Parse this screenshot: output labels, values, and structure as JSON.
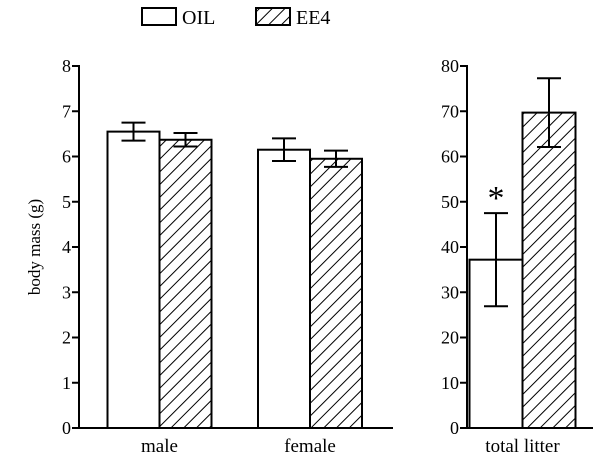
{
  "legend": {
    "oil_label": "OIL",
    "ee4_label": "EE4"
  },
  "chart_data": [
    {
      "type": "bar",
      "ylabel": "body mass (g)",
      "categories": [
        "male",
        "female"
      ],
      "ylim": [
        0,
        8
      ],
      "yticks": [
        "0",
        "1",
        "2",
        "3",
        "4",
        "5",
        "6",
        "7",
        "8"
      ],
      "series": [
        {
          "name": "OIL",
          "fill": "none",
          "values": [
            6.55,
            6.15
          ],
          "errors": [
            0.2,
            0.25
          ]
        },
        {
          "name": "EE4",
          "fill": "hatched",
          "values": [
            6.37,
            5.95
          ],
          "errors": [
            0.15,
            0.18
          ]
        }
      ]
    },
    {
      "type": "bar",
      "ylabel": "",
      "categories": [
        "total litter"
      ],
      "ylim": [
        0,
        80
      ],
      "yticks": [
        "0",
        "10",
        "20",
        "30",
        "40",
        "50",
        "60",
        "70",
        "80"
      ],
      "series": [
        {
          "name": "OIL",
          "fill": "none",
          "values": [
            37.2
          ],
          "errors": [
            10.3
          ]
        },
        {
          "name": "EE4",
          "fill": "hatched",
          "values": [
            69.7
          ],
          "errors": [
            7.6
          ]
        }
      ],
      "annotations": [
        {
          "text": "*",
          "category": "total litter",
          "series": "OIL"
        }
      ]
    }
  ],
  "colors": {
    "stroke": "#000000",
    "background": "#ffffff"
  }
}
